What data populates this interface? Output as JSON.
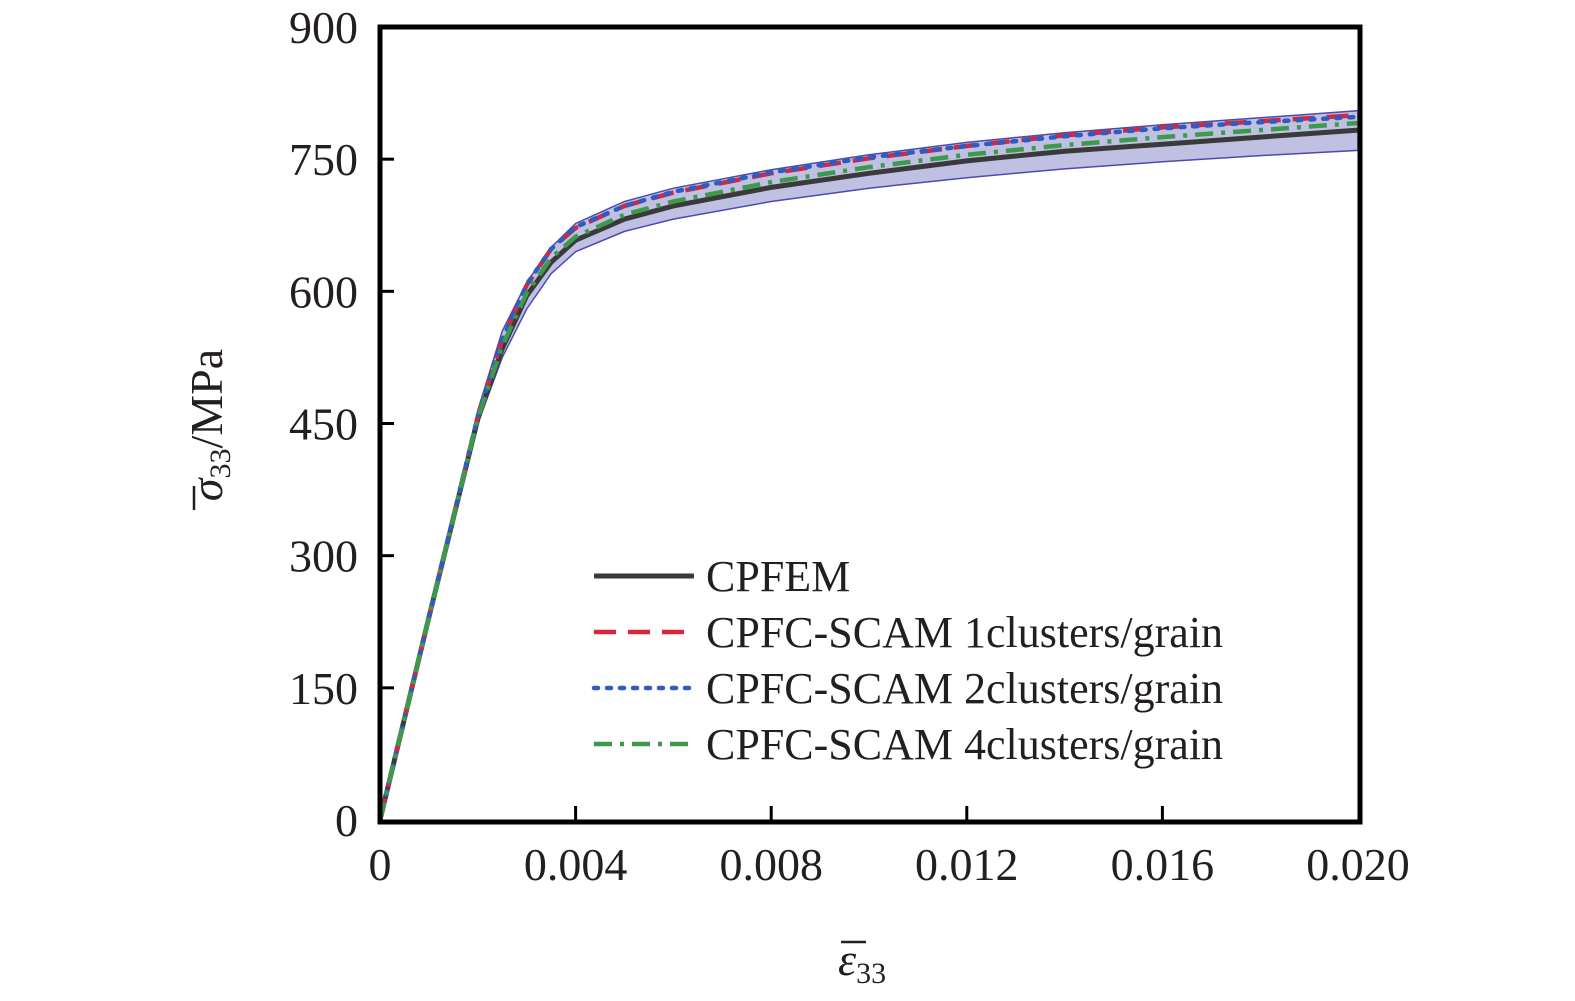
{
  "chart_data": {
    "type": "line",
    "xlabel_symbol": "ε",
    "xlabel_subscript": "33",
    "ylabel_symbol": "σ",
    "ylabel_subscript": "33",
    "ylabel_unit": "/MPa",
    "xlim": [
      0,
      0.02
    ],
    "ylim": [
      0,
      900
    ],
    "x_ticks": [
      0,
      0.004,
      0.008,
      0.012,
      0.016,
      0.02
    ],
    "x_tick_labels": [
      "0",
      "0.004",
      "0.008",
      "0.012",
      "0.016",
      "0.020"
    ],
    "y_ticks": [
      0,
      150,
      300,
      450,
      600,
      750,
      900
    ],
    "y_tick_labels": [
      "0",
      "150",
      "300",
      "450",
      "600",
      "750",
      "900"
    ],
    "grid": false,
    "legend_position": "lower-right",
    "band": {
      "color": "#4b4bb0",
      "x": [
        0,
        0.002,
        0.0025,
        0.003,
        0.0035,
        0.004,
        0.005,
        0.006,
        0.008,
        0.01,
        0.012,
        0.014,
        0.016,
        0.018,
        0.02
      ],
      "lower": [
        0,
        450,
        525,
        580,
        620,
        645,
        668,
        682,
        702,
        717,
        729,
        739,
        747,
        754,
        760
      ],
      "upper": [
        0,
        465,
        555,
        610,
        650,
        677,
        702,
        717,
        738,
        755,
        769,
        780,
        789,
        797,
        805
      ]
    },
    "series": [
      {
        "name": "CPFEM",
        "color": "#3a3a3a",
        "style": "solid",
        "x": [
          0,
          0.001,
          0.002,
          0.0025,
          0.003,
          0.0035,
          0.004,
          0.005,
          0.006,
          0.008,
          0.01,
          0.012,
          0.014,
          0.016,
          0.018,
          0.02
        ],
        "y": [
          0,
          230,
          455,
          535,
          595,
          633,
          658,
          682,
          697,
          718,
          734,
          748,
          759,
          767,
          775,
          783
        ]
      },
      {
        "name": "CPFC-SCAM 1clusters/grain",
        "color": "#d7263d",
        "style": "dashed",
        "x": [
          0,
          0.001,
          0.002,
          0.0025,
          0.003,
          0.0035,
          0.004,
          0.005,
          0.006,
          0.008,
          0.01,
          0.012,
          0.014,
          0.016,
          0.018,
          0.02
        ],
        "y": [
          0,
          230,
          458,
          545,
          607,
          648,
          672,
          697,
          712,
          734,
          751,
          765,
          777,
          786,
          793,
          800
        ]
      },
      {
        "name": "CPFC-SCAM 2clusters/grain",
        "color": "#2f5dbf",
        "style": "dotted",
        "x": [
          0,
          0.001,
          0.002,
          0.0025,
          0.003,
          0.0035,
          0.004,
          0.005,
          0.006,
          0.008,
          0.01,
          0.012,
          0.014,
          0.016,
          0.018,
          0.02
        ],
        "y": [
          0,
          230,
          458,
          545,
          608,
          648,
          673,
          697,
          713,
          735,
          752,
          765,
          776,
          785,
          792,
          798
        ]
      },
      {
        "name": "CPFC-SCAM 4clusters/grain",
        "color": "#3c9a4a",
        "style": "dashdot",
        "x": [
          0,
          0.001,
          0.002,
          0.0025,
          0.003,
          0.0035,
          0.004,
          0.005,
          0.006,
          0.008,
          0.01,
          0.012,
          0.014,
          0.016,
          0.018,
          0.02
        ],
        "y": [
          0,
          230,
          456,
          538,
          598,
          638,
          662,
          687,
          702,
          724,
          741,
          755,
          766,
          775,
          783,
          791
        ]
      }
    ]
  }
}
